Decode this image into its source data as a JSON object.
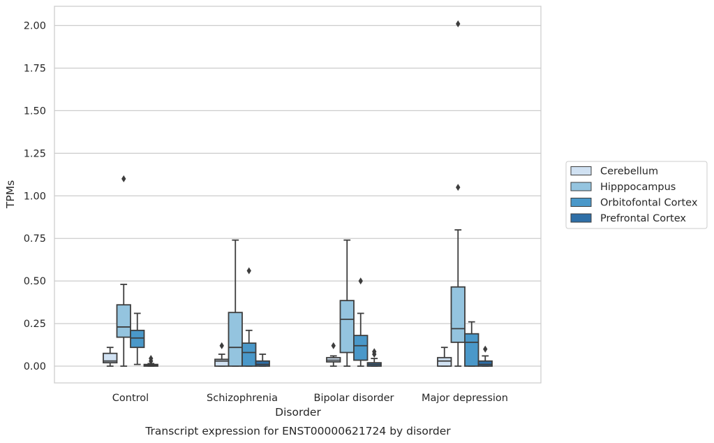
{
  "chart_data": {
    "type": "box",
    "title": "Transcript expression for ENST00000621724 by disorder",
    "xlabel": "Disorder",
    "ylabel": "TPMs",
    "ylim": [
      -0.1,
      2.11
    ],
    "yticks": [
      0.0,
      0.25,
      0.5,
      0.75,
      1.0,
      1.25,
      1.5,
      1.75,
      2.0
    ],
    "ytick_labels": [
      "0.00",
      "0.25",
      "0.50",
      "0.75",
      "1.00",
      "1.25",
      "1.50",
      "1.75",
      "2.00"
    ],
    "grid": "horizontal",
    "legend_position": "right",
    "categories": [
      "Control",
      "Schizophrenia",
      "Bipolar disorder",
      "Major depression"
    ],
    "series": [
      {
        "name": "Cerebellum",
        "color": "#d0e1f2",
        "boxes": [
          {
            "min": 0.0,
            "q1": 0.02,
            "median": 0.03,
            "q3": 0.075,
            "max": 0.11,
            "outliers": []
          },
          {
            "min": 0.0,
            "q1": 0.0,
            "median": 0.03,
            "q3": 0.04,
            "max": 0.07,
            "outliers": [
              0.12
            ]
          },
          {
            "min": 0.0,
            "q1": 0.025,
            "median": 0.035,
            "q3": 0.05,
            "max": 0.06,
            "outliers": [
              0.12
            ]
          },
          {
            "min": 0.0,
            "q1": 0.0,
            "median": 0.03,
            "q3": 0.05,
            "max": 0.11,
            "outliers": []
          }
        ]
      },
      {
        "name": "Hipppocampus",
        "color": "#94c4df",
        "boxes": [
          {
            "min": 0.0,
            "q1": 0.17,
            "median": 0.23,
            "q3": 0.36,
            "max": 0.48,
            "outliers": [
              1.1
            ]
          },
          {
            "min": 0.0,
            "q1": 0.0,
            "median": 0.11,
            "q3": 0.315,
            "max": 0.74,
            "outliers": []
          },
          {
            "min": 0.0,
            "q1": 0.08,
            "median": 0.275,
            "q3": 0.385,
            "max": 0.74,
            "outliers": []
          },
          {
            "min": 0.0,
            "q1": 0.14,
            "median": 0.22,
            "q3": 0.465,
            "max": 0.8,
            "outliers": [
              1.05,
              2.01
            ]
          }
        ]
      },
      {
        "name": "Orbitofontal Cortex",
        "color": "#4a98c9",
        "boxes": [
          {
            "min": 0.01,
            "q1": 0.11,
            "median": 0.165,
            "q3": 0.21,
            "max": 0.31,
            "outliers": []
          },
          {
            "min": 0.0,
            "q1": 0.0,
            "median": 0.08,
            "q3": 0.135,
            "max": 0.21,
            "outliers": [
              0.56
            ]
          },
          {
            "min": 0.0,
            "q1": 0.035,
            "median": 0.12,
            "q3": 0.18,
            "max": 0.31,
            "outliers": [
              0.5
            ]
          },
          {
            "min": 0.0,
            "q1": 0.0,
            "median": 0.14,
            "q3": 0.19,
            "max": 0.26,
            "outliers": []
          }
        ]
      },
      {
        "name": "Prefrontal Cortex",
        "color": "#2e6fa7",
        "boxes": [
          {
            "min": 0.0,
            "q1": 0.0,
            "median": 0.005,
            "q3": 0.01,
            "max": 0.015,
            "outliers": [
              0.03,
              0.045
            ]
          },
          {
            "min": 0.0,
            "q1": 0.0,
            "median": 0.01,
            "q3": 0.03,
            "max": 0.07,
            "outliers": []
          },
          {
            "min": 0.0,
            "q1": 0.0,
            "median": 0.01,
            "q3": 0.02,
            "max": 0.045,
            "outliers": [
              0.07,
              0.085
            ]
          },
          {
            "min": 0.0,
            "q1": 0.0,
            "median": 0.01,
            "q3": 0.03,
            "max": 0.06,
            "outliers": [
              0.1
            ]
          }
        ]
      }
    ]
  }
}
